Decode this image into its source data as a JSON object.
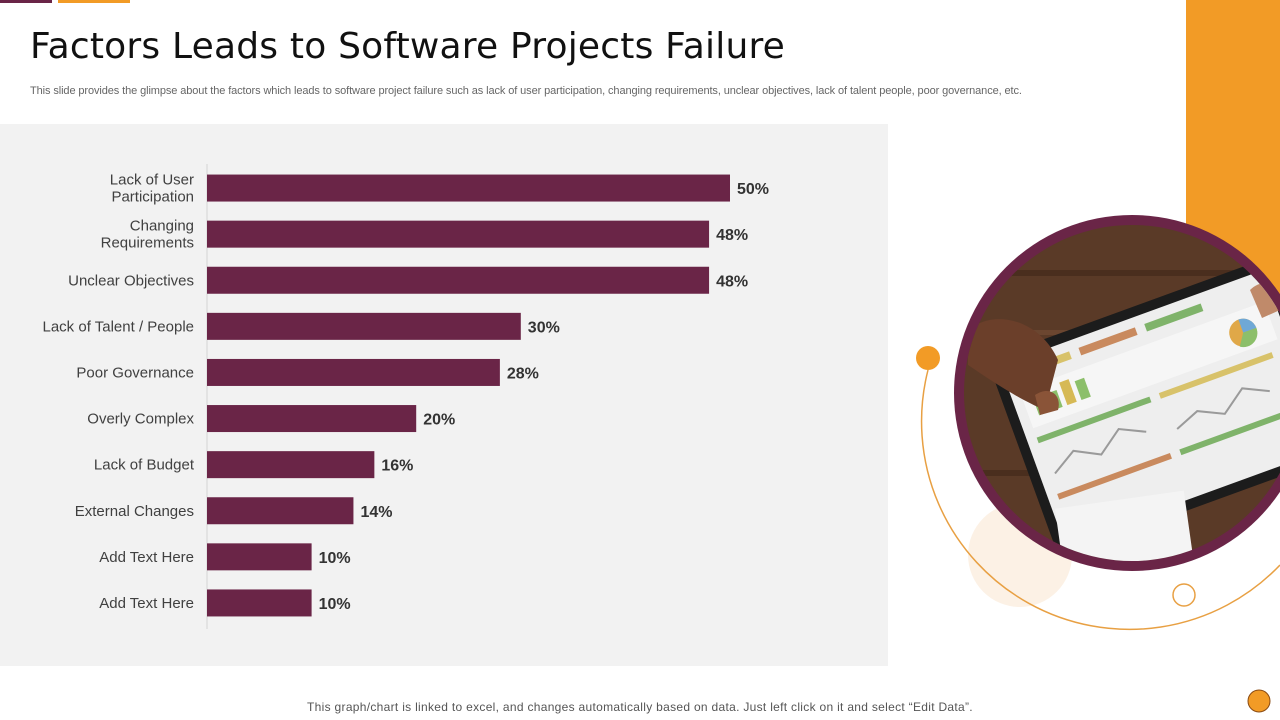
{
  "header": {
    "title": "Factors Leads to Software Projects Failure",
    "subtitle": "This slide provides the glimpse about the factors which leads to software project failure such as lack of user participation, changing requirements, unclear objectives, lack of talent people, poor governance, etc."
  },
  "footer": {
    "note": "This graph/chart is linked to excel, and changes automatically based on data. Just left click on it and select “Edit Data”."
  },
  "colors": {
    "bar": "#6a2547",
    "accent_orange": "#f29b26",
    "accent_purple": "#6a2547",
    "panel_bg": "#f2f2f2"
  },
  "chart_data": {
    "type": "bar",
    "orientation": "horizontal",
    "title": "",
    "xlabel": "",
    "ylabel": "",
    "xlim": [
      0,
      50
    ],
    "grid": false,
    "categories": [
      [
        "Lack of User",
        "Participation"
      ],
      [
        "Changing",
        "Requirements"
      ],
      [
        "Unclear Objectives"
      ],
      [
        "Lack of Talent / People"
      ],
      [
        "Poor Governance"
      ],
      [
        "Overly Complex"
      ],
      [
        "Lack of Budget"
      ],
      [
        "External Changes"
      ],
      [
        "Add Text Here"
      ],
      [
        "Add Text Here"
      ]
    ],
    "values": [
      50,
      48,
      48,
      30,
      28,
      20,
      16,
      14,
      10,
      10
    ],
    "value_labels": [
      "50%",
      "48%",
      "48%",
      "30%",
      "28%",
      "20%",
      "16%",
      "14%",
      "10%",
      "10%"
    ]
  },
  "image": {
    "icon": "tablet-dashboard-photo-icon"
  }
}
